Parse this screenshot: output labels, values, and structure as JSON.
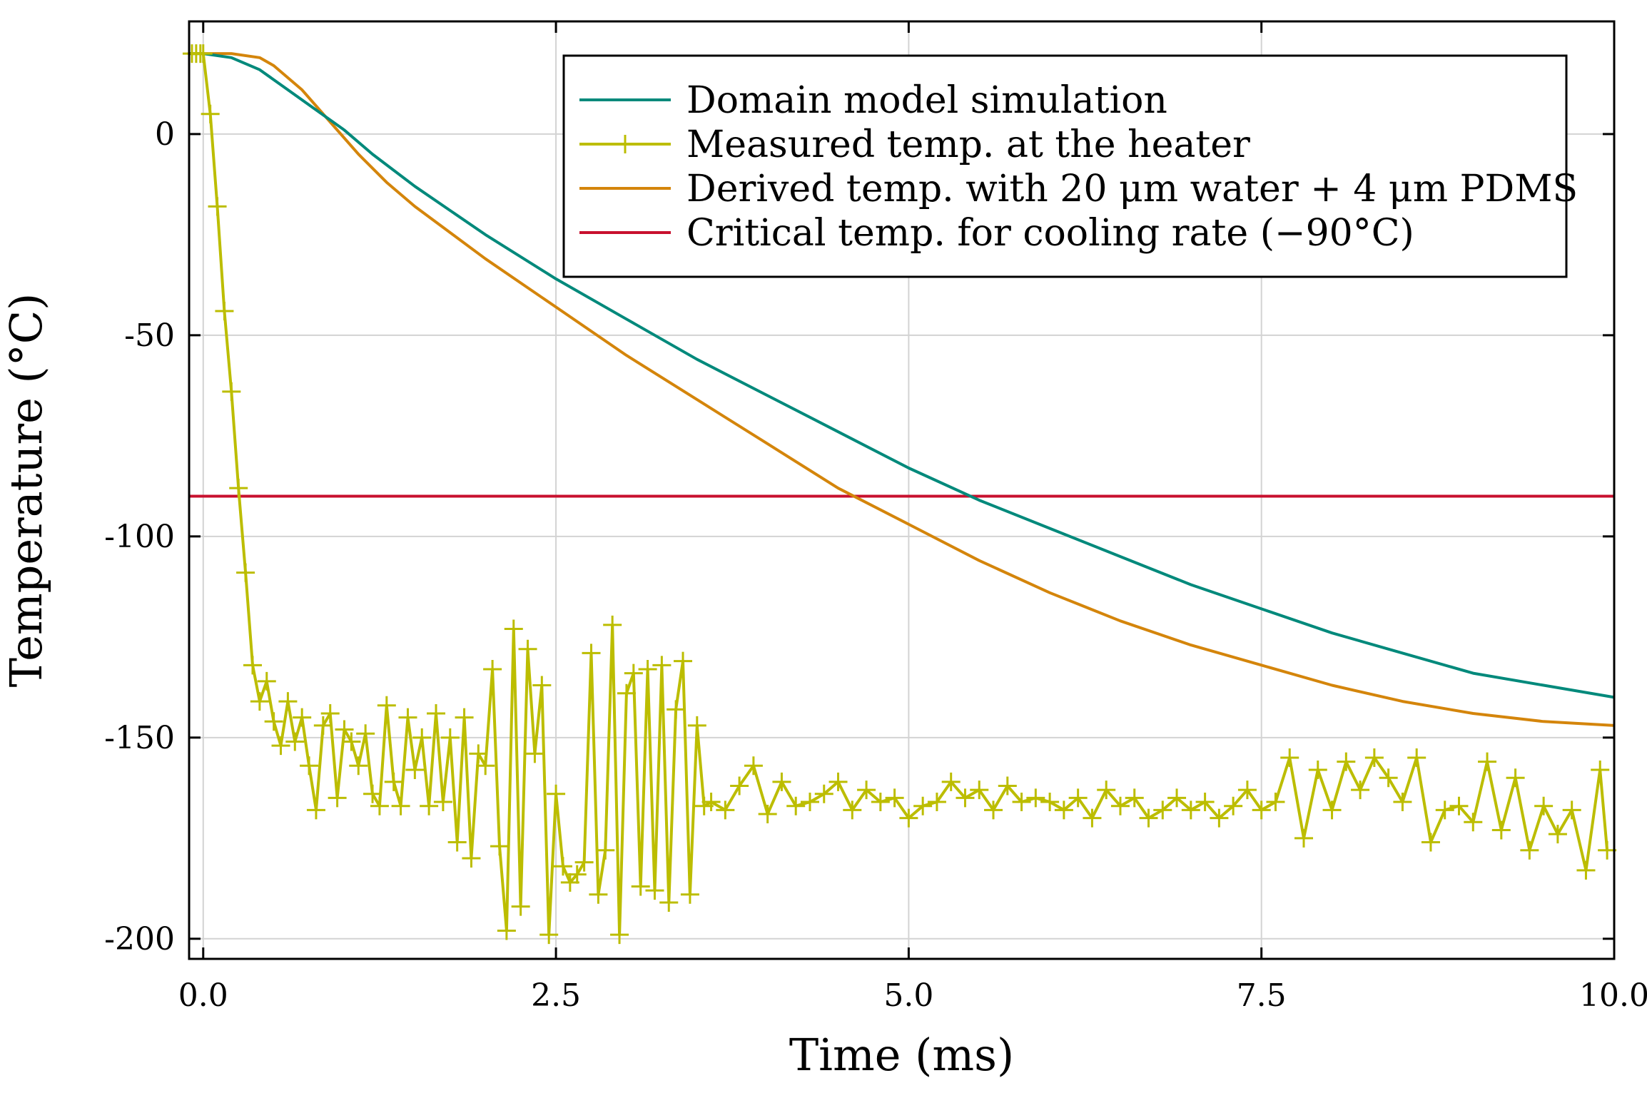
{
  "chart_data": {
    "type": "line",
    "xlabel": "Time (ms)",
    "ylabel": "Temperature (°C)",
    "xlim": [
      -0.1,
      10.0
    ],
    "ylim": [
      -205,
      28
    ],
    "xticks": [
      0.0,
      2.5,
      5.0,
      7.5,
      10.0
    ],
    "xtick_labels": [
      "0.0",
      "2.5",
      "5.0",
      "7.5",
      "10.0"
    ],
    "yticks": [
      0,
      -50,
      -100,
      -150,
      -200
    ],
    "ytick_labels": [
      "0",
      "-50",
      "-100",
      "-150",
      "-200"
    ],
    "grid": true,
    "legend_position": "top-right",
    "series": [
      {
        "name": "Domain model simulation",
        "color": "#00897b",
        "marker": "none",
        "x": [
          -0.1,
          0.0,
          0.2,
          0.4,
          0.6,
          0.8,
          1.0,
          1.2,
          1.5,
          2.0,
          2.5,
          3.0,
          3.5,
          4.0,
          4.5,
          5.0,
          5.5,
          6.0,
          6.5,
          7.0,
          7.5,
          8.0,
          8.5,
          9.0,
          9.5,
          10.0
        ],
        "y": [
          20,
          20,
          19,
          16,
          11,
          6,
          1,
          -5,
          -13,
          -25,
          -36,
          -46,
          -56,
          -65,
          -74,
          -83,
          -91,
          -98,
          -105,
          -112,
          -118,
          -124,
          -129,
          -134,
          -137,
          -140
        ]
      },
      {
        "name": "Measured temp. at the heater",
        "color": "#bcbd00",
        "marker": "plus",
        "x": [
          -0.08,
          -0.05,
          -0.02,
          0.0,
          0.05,
          0.1,
          0.15,
          0.2,
          0.25,
          0.3,
          0.35,
          0.4,
          0.45,
          0.5,
          0.55,
          0.6,
          0.65,
          0.7,
          0.75,
          0.8,
          0.85,
          0.9,
          0.95,
          1.0,
          1.05,
          1.1,
          1.15,
          1.2,
          1.25,
          1.3,
          1.35,
          1.4,
          1.45,
          1.5,
          1.55,
          1.6,
          1.65,
          1.7,
          1.75,
          1.8,
          1.85,
          1.9,
          1.95,
          2.0,
          2.05,
          2.1,
          2.15,
          2.2,
          2.25,
          2.3,
          2.35,
          2.4,
          2.45,
          2.5,
          2.55,
          2.6,
          2.65,
          2.7,
          2.75,
          2.8,
          2.85,
          2.9,
          2.95,
          3.0,
          3.05,
          3.1,
          3.15,
          3.2,
          3.25,
          3.3,
          3.35,
          3.4,
          3.45,
          3.5,
          3.55,
          3.6,
          3.7,
          3.8,
          3.9,
          4.0,
          4.1,
          4.2,
          4.3,
          4.4,
          4.5,
          4.6,
          4.7,
          4.8,
          4.9,
          5.0,
          5.1,
          5.2,
          5.3,
          5.4,
          5.5,
          5.6,
          5.7,
          5.8,
          5.9,
          6.0,
          6.1,
          6.2,
          6.3,
          6.4,
          6.5,
          6.6,
          6.7,
          6.8,
          6.9,
          7.0,
          7.1,
          7.2,
          7.3,
          7.4,
          7.5,
          7.6,
          7.7,
          7.8,
          7.9,
          8.0,
          8.1,
          8.2,
          8.3,
          8.4,
          8.5,
          8.6,
          8.7,
          8.8,
          8.9,
          9.0,
          9.1,
          9.2,
          9.3,
          9.4,
          9.5,
          9.6,
          9.7,
          9.8,
          9.9,
          9.95
        ],
        "y": [
          20,
          20,
          20,
          20,
          5,
          -18,
          -44,
          -64,
          -88,
          -109,
          -132,
          -141,
          -136,
          -146,
          -152,
          -141,
          -151,
          -145,
          -157,
          -168,
          -147,
          -144,
          -165,
          -148,
          -151,
          -157,
          -149,
          -164,
          -167,
          -142,
          -161,
          -167,
          -145,
          -158,
          -150,
          -167,
          -144,
          -166,
          -150,
          -176,
          -145,
          -180,
          -154,
          -157,
          -133,
          -177,
          -198,
          -123,
          -192,
          -128,
          -154,
          -137,
          -199,
          -164,
          -182,
          -186,
          -184,
          -181,
          -129,
          -189,
          -178,
          -122,
          -199,
          -139,
          -134,
          -187,
          -133,
          -188,
          -132,
          -191,
          -143,
          -131,
          -189,
          -147,
          -167,
          -166,
          -168,
          -162,
          -157,
          -169,
          -161,
          -167,
          -166,
          -164,
          -161,
          -168,
          -163,
          -166,
          -165,
          -170,
          -167,
          -166,
          -161,
          -165,
          -163,
          -168,
          -162,
          -166,
          -165,
          -166,
          -168,
          -165,
          -170,
          -163,
          -167,
          -165,
          -170,
          -168,
          -165,
          -168,
          -166,
          -170,
          -167,
          -163,
          -168,
          -166,
          -155,
          -175,
          -158,
          -168,
          -156,
          -163,
          -155,
          -160,
          -166,
          -155,
          -176,
          -168,
          -167,
          -171,
          -156,
          -173,
          -160,
          -178,
          -167,
          -174,
          -168,
          -183,
          -158,
          -178
        ]
      },
      {
        "name": "Derived temp. with 20 μm water + 4 μm PDMS",
        "color": "#d4850b",
        "marker": "none",
        "x": [
          -0.1,
          0.0,
          0.2,
          0.4,
          0.5,
          0.7,
          0.9,
          1.1,
          1.3,
          1.5,
          2.0,
          2.5,
          3.0,
          3.5,
          4.0,
          4.5,
          5.0,
          5.5,
          6.0,
          6.5,
          7.0,
          7.5,
          8.0,
          8.5,
          9.0,
          9.5,
          10.0
        ],
        "y": [
          20,
          20,
          20,
          19,
          17,
          11,
          3,
          -5,
          -12,
          -18,
          -31,
          -43,
          -55,
          -66,
          -77,
          -88,
          -97,
          -106,
          -114,
          -121,
          -127,
          -132,
          -137,
          -141,
          -144,
          -146,
          -147
        ]
      },
      {
        "name": "Critical temp. for cooling rate (−90°C)",
        "color": "#c8102e",
        "marker": "none",
        "x": [
          -0.1,
          10.0
        ],
        "y": [
          -90,
          -90
        ]
      }
    ]
  }
}
